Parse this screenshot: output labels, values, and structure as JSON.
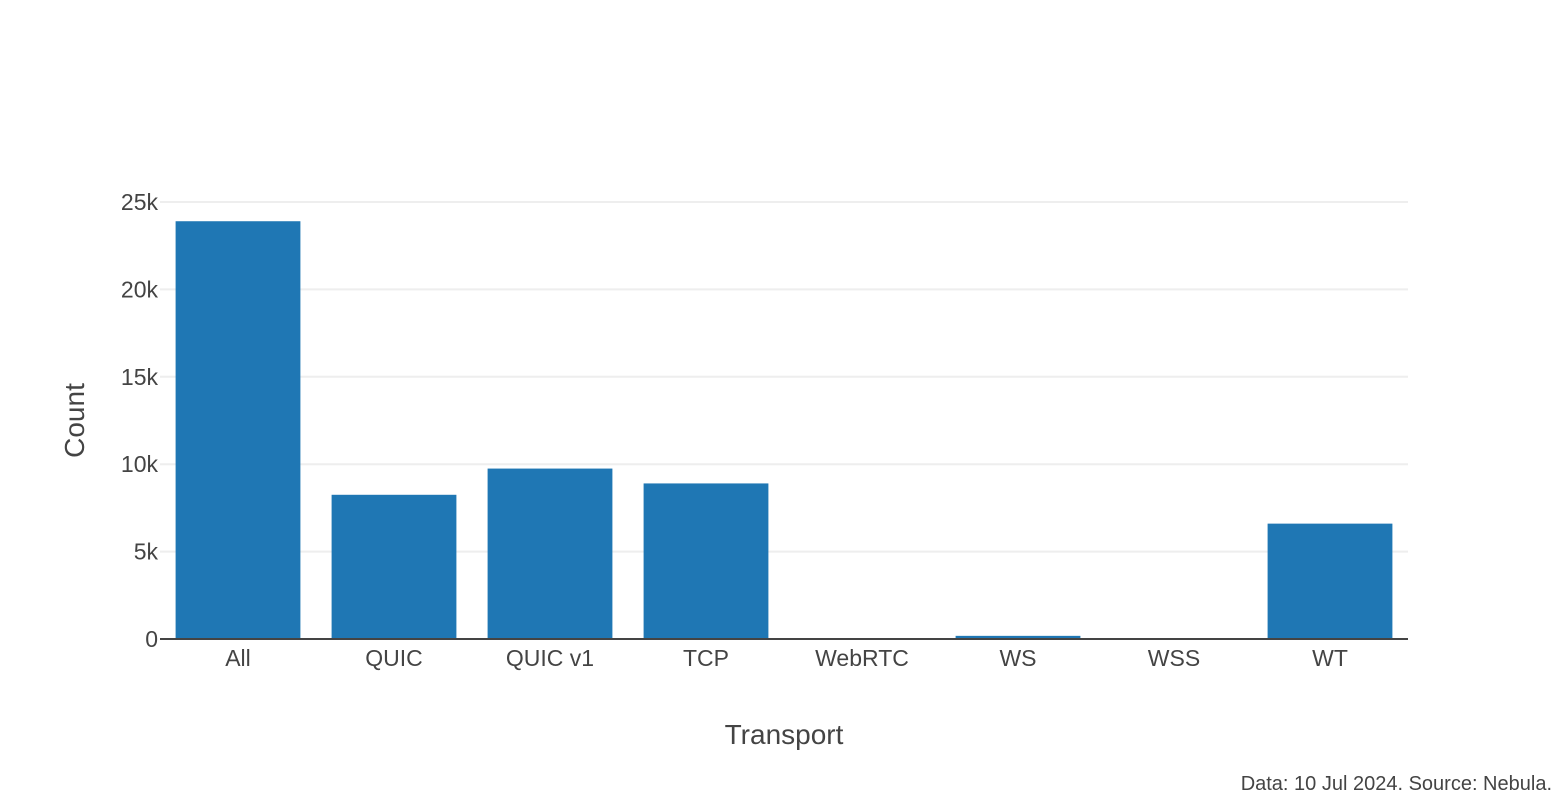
{
  "chart_data": {
    "type": "bar",
    "title": "",
    "xlabel": "Transport",
    "ylabel": "Count",
    "categories": [
      "All",
      "QUIC",
      "QUIC v1",
      "TCP",
      "WebRTC",
      "WS",
      "WSS",
      "WT"
    ],
    "values": [
      23900,
      8250,
      9750,
      8900,
      10,
      180,
      15,
      6600
    ],
    "ylim": [
      0,
      25000
    ],
    "yticks": [
      0,
      5000,
      10000,
      15000,
      20000,
      25000
    ],
    "ytick_labels": [
      "0",
      "5k",
      "10k",
      "15k",
      "20k",
      "25k"
    ],
    "grid": true,
    "bar_color": "#1f77b4",
    "grid_color": "#eeeeee",
    "axis_color": "#444444"
  },
  "footer": {
    "source_note": "Data: 10 Jul 2024. Source: Nebula."
  }
}
